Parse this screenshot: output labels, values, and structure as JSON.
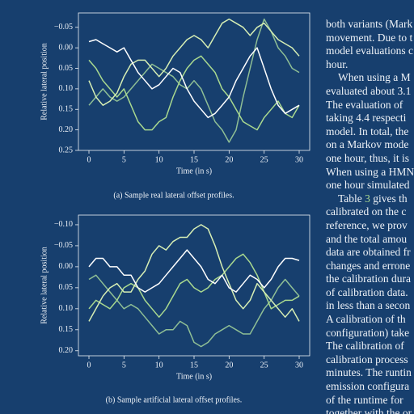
{
  "chart_data": [
    {
      "type": "line",
      "ylabel": "Relative lateral position",
      "xlabel": "Time (in s)",
      "caption": "(a) Sample real lateral offset profiles.",
      "x": [
        0,
        1,
        2,
        3,
        4,
        5,
        6,
        7,
        8,
        9,
        10,
        11,
        12,
        13,
        14,
        15,
        16,
        17,
        18,
        19,
        20,
        21,
        22,
        23,
        24,
        25,
        26,
        27,
        28,
        29,
        30
      ],
      "xlim": [
        -1.5,
        31.5
      ],
      "xticks": [
        0,
        5,
        10,
        15,
        20,
        25,
        30
      ],
      "ylim": [
        0.25,
        -0.085
      ],
      "yticks": [
        {
          "value": -0.05,
          "label": "−0.05"
        },
        {
          "value": 0,
          "label": "0.00"
        },
        {
          "value": 0.05,
          "label": "0.05"
        },
        {
          "value": 0.1,
          "label": "0.10"
        },
        {
          "value": 0.15,
          "label": "0.15"
        },
        {
          "value": 0.2,
          "label": "0.20"
        },
        {
          "value": 0.25,
          "label": "0.25"
        }
      ],
      "series": [
        {
          "color": "#8fbf95",
          "values": [
            0.14,
            0.12,
            0.1,
            0.12,
            0.13,
            0.12,
            0.1,
            0.08,
            0.06,
            0.04,
            0.05,
            0.06,
            0.07,
            0.09,
            0.1,
            0.08,
            0.1,
            0.14,
            0.18,
            0.2,
            0.23,
            0.2,
            0.12,
            0.05,
            -0.02,
            -0.07,
            -0.04,
            0,
            0.02,
            0.05,
            0.06
          ]
        },
        {
          "color": "#a9d98f",
          "values": [
            0.03,
            0.05,
            0.08,
            0.1,
            0.12,
            0.1,
            0.14,
            0.18,
            0.2,
            0.2,
            0.18,
            0.17,
            0.12,
            0.08,
            0.05,
            0.03,
            0.02,
            0.04,
            0.06,
            0.1,
            0.12,
            0.15,
            0.18,
            0.19,
            0.2,
            0.17,
            0.15,
            0.13,
            0.16,
            0.17,
            0.14
          ]
        },
        {
          "color": "#d6eeb4",
          "values": [
            0.08,
            0.12,
            0.14,
            0.13,
            0.11,
            0.07,
            0.04,
            0.03,
            0.03,
            0.05,
            0.07,
            0.05,
            0.02,
            0,
            -0.02,
            -0.03,
            -0.02,
            0,
            -0.03,
            -0.06,
            -0.07,
            -0.06,
            -0.05,
            -0.03,
            -0.05,
            -0.06,
            -0.04,
            -0.02,
            -0.01,
            0,
            0.02
          ]
        },
        {
          "color": "#ffffff",
          "values": [
            -0.015,
            -0.02,
            -0.01,
            0,
            0.01,
            0,
            0.03,
            0.06,
            0.08,
            0.1,
            0.09,
            0.07,
            0.05,
            0.06,
            0.1,
            0.13,
            0.15,
            0.17,
            0.16,
            0.14,
            0.12,
            0.08,
            0.05,
            0.02,
            0,
            0.05,
            0.1,
            0.14,
            0.16,
            0.15,
            0.14
          ]
        }
      ]
    },
    {
      "type": "line",
      "ylabel": "Relative lateral position",
      "xlabel": "Time (in s)",
      "caption": "(b) Sample artificial lateral offset profiles.",
      "x": [
        0,
        1,
        2,
        3,
        4,
        5,
        6,
        7,
        8,
        9,
        10,
        11,
        12,
        13,
        14,
        15,
        16,
        17,
        18,
        19,
        20,
        21,
        22,
        23,
        24,
        25,
        26,
        27,
        28,
        29,
        30
      ],
      "xlim": [
        -1.5,
        31.5
      ],
      "xticks": [
        0,
        5,
        10,
        15,
        20,
        25,
        30
      ],
      "ylim": [
        0.212,
        -0.123
      ],
      "yticks": [
        {
          "value": -0.1,
          "label": "−0.10"
        },
        {
          "value": -0.05,
          "label": "−0.05"
        },
        {
          "value": 0,
          "label": "0.00"
        },
        {
          "value": 0.05,
          "label": "0.05"
        },
        {
          "value": 0.1,
          "label": "0.10"
        },
        {
          "value": 0.15,
          "label": "0.15"
        },
        {
          "value": 0.2,
          "label": "0.20"
        }
      ],
      "series": [
        {
          "color": "#8fbf95",
          "values": [
            0.03,
            0.02,
            0.04,
            0.06,
            0.08,
            0.1,
            0.09,
            0.1,
            0.12,
            0.14,
            0.16,
            0.15,
            0.15,
            0.13,
            0.14,
            0.18,
            0.19,
            0.18,
            0.16,
            0.15,
            0.14,
            0.15,
            0.16,
            0.16,
            0.13,
            0.1,
            0.08,
            0.05,
            0.03,
            0.05,
            0.07
          ]
        },
        {
          "color": "#a9d98f",
          "values": [
            0.1,
            0.08,
            0.09,
            0.1,
            0.08,
            0.05,
            0.04,
            0.05,
            0.08,
            0.1,
            0.12,
            0.1,
            0.07,
            0.04,
            0.03,
            0.05,
            0.06,
            0.05,
            0.03,
            0.02,
            0,
            -0.02,
            -0.03,
            -0.01,
            0.02,
            0.06,
            0.1,
            0.09,
            0.08,
            0.08,
            0.07
          ]
        },
        {
          "color": "#d6eeb4",
          "values": [
            0.13,
            0.1,
            0.07,
            0.05,
            0.04,
            0.06,
            0.06,
            0.03,
            0.01,
            -0.03,
            -0.05,
            -0.04,
            -0.06,
            -0.07,
            -0.07,
            -0.09,
            -0.1,
            -0.09,
            -0.05,
            0,
            0.04,
            0.08,
            0.1,
            0.08,
            0.04,
            0.06,
            0.08,
            0.1,
            0.12,
            0.1,
            0.13
          ]
        },
        {
          "color": "#ffffff",
          "values": [
            0,
            -0.02,
            -0.02,
            0,
            0,
            0.02,
            0.02,
            0.05,
            0.06,
            0.05,
            0.04,
            0.02,
            0,
            -0.02,
            -0.04,
            -0.02,
            0,
            0.03,
            0.04,
            0.02,
            0.05,
            0.06,
            0.04,
            0.02,
            0.03,
            0.05,
            0.03,
            0,
            -0.02,
            -0.02,
            -0.015
          ]
        }
      ]
    }
  ],
  "text": {
    "lines": [
      "both variants (Mark",
      "movement. Due to t",
      "model evaluations c",
      "hour.",
      "When using a M",
      "evaluated about 3.1",
      "The evaluation of",
      "taking 4.4 respecti",
      "model. In total, the",
      "on a Markov mode",
      "one hour, thus, it is",
      "When using a HMN",
      "one hour simulated",
      "gives th",
      "calibrated on the c",
      "reference, we prov",
      "and the total amou",
      "data are obtained fr",
      "changes and errone",
      "the calibration dura",
      "of calibration data. ",
      "in less than a secon",
      "A calibration of th",
      "configuration) take",
      "The calibration of",
      "calibration process",
      "minutes. The runtin",
      "emission configura",
      "of the runtime for",
      "together with the or"
    ],
    "table_word": "Table",
    "table_ref": "3"
  }
}
